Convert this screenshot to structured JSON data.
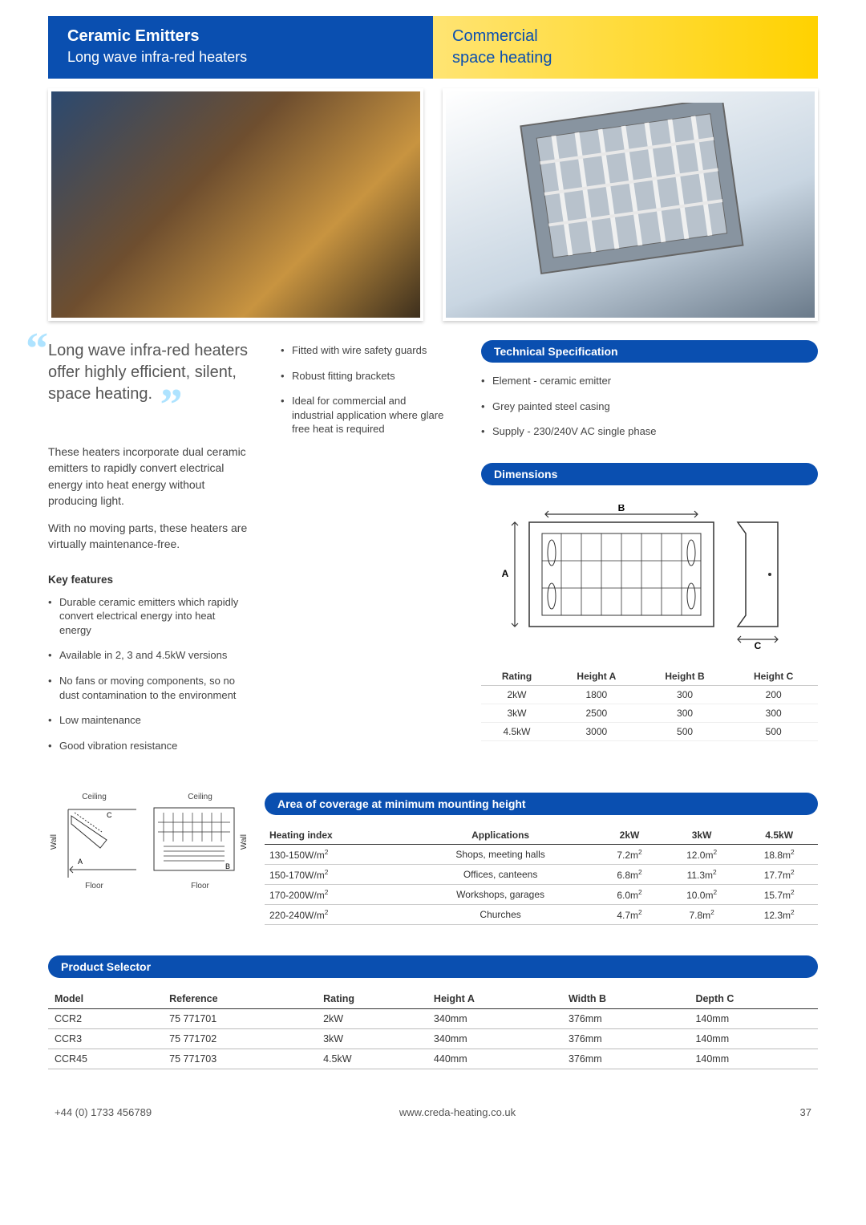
{
  "header": {
    "left_title": "Ceramic Emitters",
    "left_subtitle": "Long wave infra-red heaters",
    "right_line1": "Commercial",
    "right_line2": "space heating"
  },
  "quote": {
    "text": "Long wave infra-red heaters offer highly efficient, silent, space heating."
  },
  "intro_paras": [
    "These heaters incorporate dual ceramic emitters to rapidly convert electrical energy into heat energy without producing light.",
    "With no moving parts, these heaters are virtually maintenance-free."
  ],
  "key_features_heading": "Key features",
  "key_features": [
    "Durable ceramic emitters which rapidly convert electrical energy into heat energy",
    "Available in 2, 3 and 4.5kW versions",
    "No fans or moving components, so no dust contamination to the environment",
    "Low maintenance",
    "Good vibration resistance"
  ],
  "mid_bullets": [
    "Fitted with wire safety guards",
    "Robust fitting brackets",
    "Ideal for commercial and industrial application where glare free heat is required"
  ],
  "tech_spec_heading": "Technical Specification",
  "tech_spec": [
    "Element - ceramic emitter",
    "Grey painted steel casing",
    "Supply - 230/240V AC single phase"
  ],
  "dimensions_heading": "Dimensions",
  "dim_labels": {
    "a": "A",
    "b": "B",
    "c": "C"
  },
  "dim_table": {
    "headers": [
      "Rating",
      "Height A",
      "Height B",
      "Height C"
    ],
    "rows": [
      [
        "2kW",
        "1800",
        "300",
        "200"
      ],
      [
        "3kW",
        "2500",
        "300",
        "300"
      ],
      [
        "4.5kW",
        "3000",
        "500",
        "500"
      ]
    ]
  },
  "coverage_heading": "Area of coverage at minimum mounting height",
  "mount_labels": {
    "ceiling": "Ceiling",
    "wall": "Wall",
    "floor": "Floor"
  },
  "coverage_table": {
    "headers": [
      "Heating index",
      "Applications",
      "2kW",
      "3kW",
      "4.5kW"
    ],
    "rows": [
      [
        "130-150W/m²",
        "Shops, meeting halls",
        "7.2m²",
        "12.0m²",
        "18.8m²"
      ],
      [
        "150-170W/m²",
        "Offices, canteens",
        "6.8m²",
        "11.3m²",
        "17.7m²"
      ],
      [
        "170-200W/m²",
        "Workshops, garages",
        "6.0m²",
        "10.0m²",
        "15.7m²"
      ],
      [
        "220-240W/m²",
        "Churches",
        "4.7m²",
        "7.8m²",
        "12.3m²"
      ]
    ]
  },
  "selector_heading": "Product Selector",
  "selector_table": {
    "headers": [
      "Model",
      "Reference",
      "Rating",
      "Height A",
      "Width B",
      "Depth C"
    ],
    "rows": [
      [
        "CCR2",
        "75 771701",
        "2kW",
        "340mm",
        "376mm",
        "140mm"
      ],
      [
        "CCR3",
        "75 771702",
        "3kW",
        "340mm",
        "376mm",
        "140mm"
      ],
      [
        "CCR45",
        "75 771703",
        "4.5kW",
        "440mm",
        "376mm",
        "140mm"
      ]
    ]
  },
  "footer": {
    "phone": "+44 (0) 1733 456789",
    "url": "www.creda-heating.co.uk",
    "page": "37"
  },
  "colors": {
    "blue": "#0a4fb0",
    "light_blue": "#aee3ff",
    "yellow_left": "#ffe473",
    "yellow_right": "#ffd200",
    "grey_text": "#444"
  }
}
